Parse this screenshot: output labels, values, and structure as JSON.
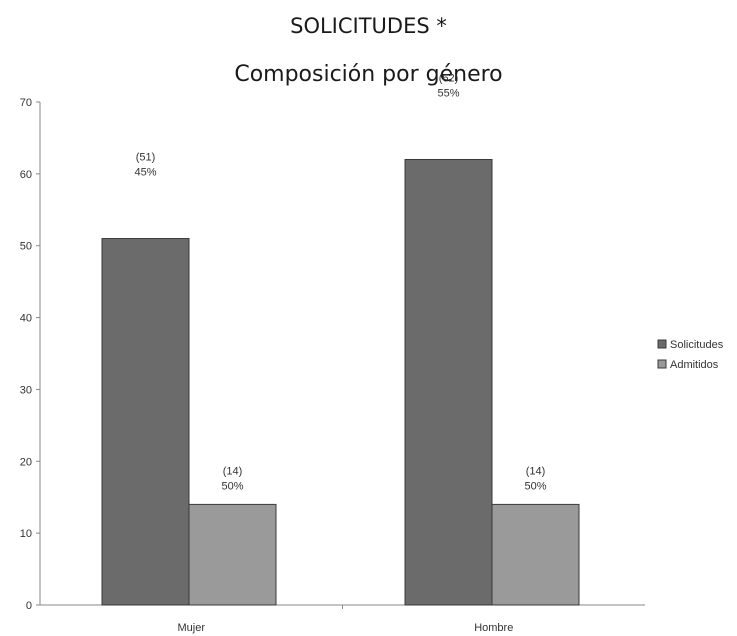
{
  "chart_data": {
    "type": "bar",
    "title": "SOLICITUDES *",
    "subtitle": "Composición por género",
    "categories": [
      "Mujer",
      "Hombre"
    ],
    "series": [
      {
        "name": "Solicitudes",
        "color": "#6b6b6b",
        "values": [
          51,
          62
        ],
        "labels": [
          [
            "(51)",
            "45%"
          ],
          [
            "(62)",
            "55%"
          ]
        ]
      },
      {
        "name": "Admitidos",
        "color": "#9a9a9a",
        "values": [
          14,
          14
        ],
        "labels": [
          [
            "(14)",
            "50%"
          ],
          [
            "(14)",
            "50%"
          ]
        ]
      }
    ],
    "ylim": [
      0,
      70
    ],
    "yticks": [
      0,
      10,
      20,
      30,
      40,
      50,
      60,
      70
    ],
    "legend": "right"
  }
}
